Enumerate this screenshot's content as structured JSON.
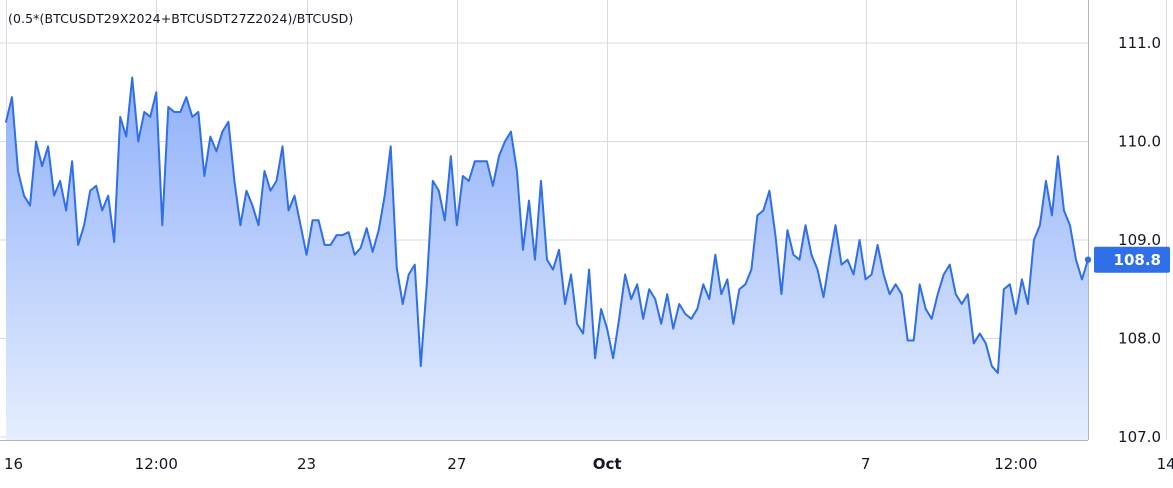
{
  "symbol_label": "(0.5*(BTCUSDT29X2024+BTCUSDT27Z2024)/BTCUSD)",
  "colors": {
    "line": "#2f6fe8",
    "area_top": "#8fb0f9",
    "area_bottom": "#e6eeff",
    "grid": "#d8dbe3",
    "price_tag_bg": "#2f6fe8",
    "price_tag_text": "#ffffff",
    "axis_text": "#131722"
  },
  "chart_data": {
    "type": "area",
    "title": "(0.5*(BTCUSDT29X2024+BTCUSDT27Z2024)/BTCUSD)",
    "xlabel": "",
    "ylabel": "",
    "ylim": [
      107.0,
      111.0
    ],
    "y_ticks": [
      "111.0",
      "110.0",
      "109.0",
      "108.0",
      "107.0"
    ],
    "x_ticks": [
      {
        "label": "16",
        "index": 0,
        "bold": false
      },
      {
        "label": "12:00",
        "index": 25,
        "bold": false
      },
      {
        "label": "23",
        "index": 50,
        "bold": false
      },
      {
        "label": "27",
        "index": 75,
        "bold": false
      },
      {
        "label": "Oct",
        "index": 100,
        "bold": true
      },
      {
        "label": "7",
        "index": 143,
        "bold": false
      },
      {
        "label": "12:00",
        "index": 168,
        "bold": false
      },
      {
        "label": "14",
        "index": 193,
        "bold": false
      }
    ],
    "last_value": "108.8",
    "grid": true,
    "legend": "top-left",
    "series": [
      {
        "values": [
          110.2,
          110.45,
          109.7,
          109.45,
          109.35,
          110.0,
          109.75,
          109.95,
          109.45,
          109.6,
          109.3,
          109.8,
          108.95,
          109.15,
          109.5,
          109.55,
          109.3,
          109.45,
          108.98,
          110.25,
          110.05,
          110.65,
          110.0,
          110.3,
          110.25,
          110.5,
          109.15,
          110.35,
          110.3,
          110.3,
          110.45,
          110.25,
          110.3,
          109.65,
          110.05,
          109.9,
          110.1,
          110.2,
          109.6,
          109.15,
          109.5,
          109.35,
          109.15,
          109.7,
          109.5,
          109.6,
          109.95,
          109.3,
          109.45,
          109.15,
          108.85,
          109.2,
          109.2,
          108.95,
          108.95,
          109.05,
          109.05,
          109.08,
          108.85,
          108.92,
          109.12,
          108.88,
          109.1,
          109.45,
          109.95,
          108.72,
          108.35,
          108.65,
          108.75,
          107.72,
          108.55,
          109.6,
          109.5,
          109.2,
          109.85,
          109.15,
          109.65,
          109.6,
          109.8,
          109.8,
          109.8,
          109.55,
          109.85,
          110.0,
          110.1,
          109.7,
          108.9,
          109.4,
          108.8,
          109.6,
          108.8,
          108.7,
          108.9,
          108.35,
          108.65,
          108.15,
          108.05,
          108.7,
          107.8,
          108.3,
          108.1,
          107.8,
          108.2,
          108.65,
          108.4,
          108.55,
          108.2,
          108.5,
          108.4,
          108.15,
          108.45,
          108.1,
          108.35,
          108.25,
          108.2,
          108.3,
          108.55,
          108.4,
          108.85,
          108.45,
          108.6,
          108.15,
          108.5,
          108.55,
          108.7,
          109.25,
          109.3,
          109.5,
          109.05,
          108.45,
          109.1,
          108.85,
          108.8,
          109.15,
          108.85,
          108.7,
          108.42,
          108.8,
          109.15,
          108.75,
          108.8,
          108.65,
          109.0,
          108.6,
          108.65,
          108.95,
          108.65,
          108.45,
          108.55,
          108.45,
          107.98,
          107.98,
          108.55,
          108.3,
          108.2,
          108.45,
          108.65,
          108.75,
          108.45,
          108.35,
          108.45,
          107.95,
          108.05,
          107.95,
          107.72,
          107.65,
          108.5,
          108.55,
          108.25,
          108.6,
          108.35,
          109.0,
          109.15,
          109.6,
          109.25,
          109.85,
          109.3,
          109.15,
          108.8,
          108.6,
          108.8
        ]
      }
    ]
  }
}
